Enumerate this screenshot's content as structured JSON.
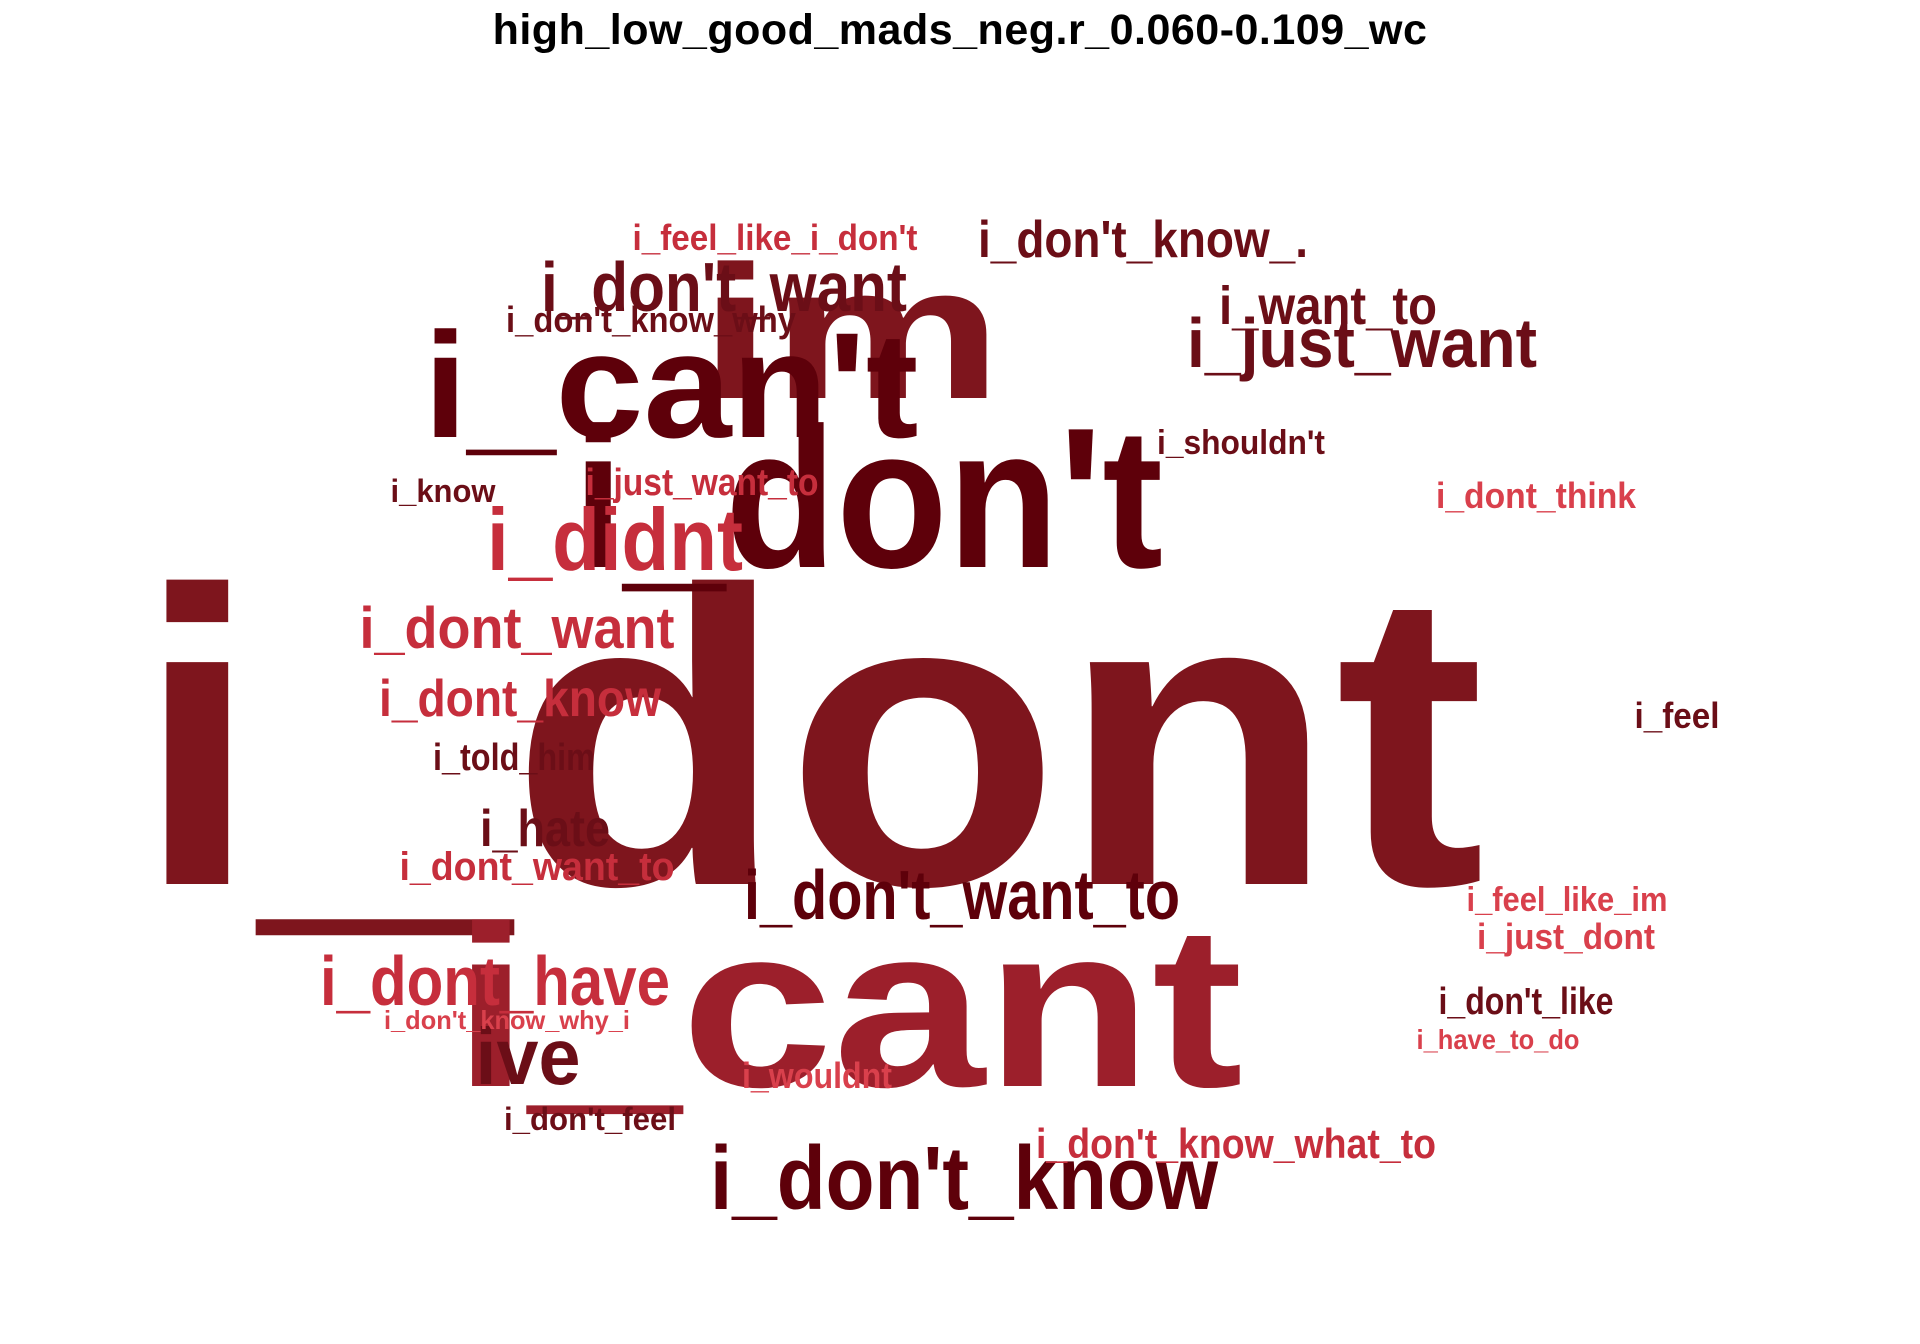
{
  "title": "high_low_good_mads_neg.r_0.060-0.109_wc",
  "palette": {
    "darkest": "#5e000a",
    "dark": "#6b0e17",
    "medium": "#7e151d",
    "red": "#9c1f2b",
    "light": "#c62e3c",
    "lightest": "#d9404c"
  },
  "words": [
    {
      "text": "i_dont",
      "tone": "medium"
    },
    {
      "text": "i_cant",
      "tone": "red"
    },
    {
      "text": "i_don't",
      "tone": "darkest"
    },
    {
      "text": "im",
      "tone": "medium"
    },
    {
      "text": "i_can't",
      "tone": "darkest"
    },
    {
      "text": "i_don't_know",
      "tone": "darkest"
    },
    {
      "text": "i_didnt",
      "tone": "light"
    },
    {
      "text": "i_don't_want",
      "tone": "dark"
    },
    {
      "text": "i_just_want",
      "tone": "dark"
    },
    {
      "text": "i_don't_want_to",
      "tone": "darkest"
    },
    {
      "text": "i_dont_have",
      "tone": "light"
    },
    {
      "text": "i_dont_want",
      "tone": "light"
    },
    {
      "text": "i_dont_know",
      "tone": "light"
    },
    {
      "text": "ive",
      "tone": "dark"
    },
    {
      "text": "i_don't_know_.",
      "tone": "dark"
    },
    {
      "text": "i_want_to",
      "tone": "dark"
    },
    {
      "text": "i_hate",
      "tone": "dark"
    },
    {
      "text": "i_dont_want_to",
      "tone": "light"
    },
    {
      "text": "i_don't_know_what_to",
      "tone": "light"
    },
    {
      "text": "i_just_want_to",
      "tone": "light"
    },
    {
      "text": "i_told_him",
      "tone": "dark"
    },
    {
      "text": "i_don't_like",
      "tone": "dark"
    },
    {
      "text": "i_feel_like_i_don't",
      "tone": "light"
    },
    {
      "text": "i_dont_think",
      "tone": "lightest"
    },
    {
      "text": "i_don't_know_why",
      "tone": "dark"
    },
    {
      "text": "i_shouldn't",
      "tone": "dark"
    },
    {
      "text": "i_feel_like_im",
      "tone": "lightest"
    },
    {
      "text": "i_just_dont",
      "tone": "lightest"
    },
    {
      "text": "i_wouldnt",
      "tone": "lightest"
    },
    {
      "text": "i_don't_feel",
      "tone": "dark"
    },
    {
      "text": "i_feel",
      "tone": "dark"
    },
    {
      "text": "i_know",
      "tone": "dark"
    },
    {
      "text": "i_have_to_do",
      "tone": "lightest"
    },
    {
      "text": "i_don't_know_why_i",
      "tone": "lightest"
    }
  ]
}
